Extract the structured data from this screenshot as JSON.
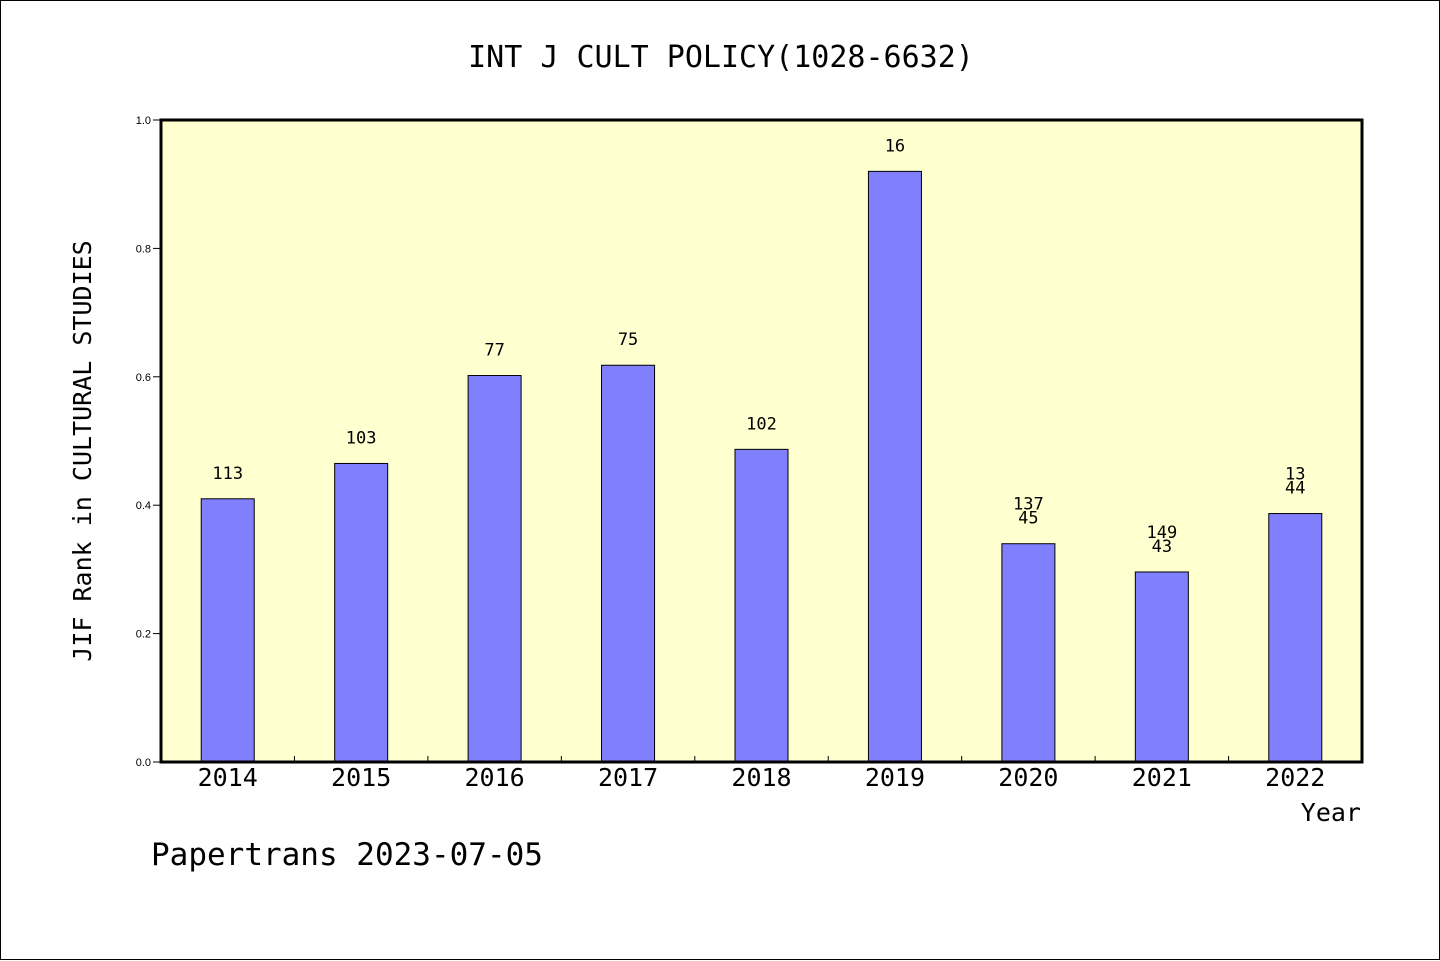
{
  "chart_data": {
    "type": "bar",
    "title": "INT J CULT POLICY(1028-6632)",
    "xlabel": "Year",
    "ylabel": "JIF Rank in CULTURAL STUDIES",
    "categories": [
      "2014",
      "2015",
      "2016",
      "2017",
      "2018",
      "2019",
      "2020",
      "2021",
      "2022"
    ],
    "values": [
      0.41,
      0.465,
      0.602,
      0.618,
      0.487,
      0.92,
      0.34,
      0.296,
      0.387
    ],
    "bar_labels": [
      [
        "113"
      ],
      [
        "103"
      ],
      [
        "77"
      ],
      [
        "75"
      ],
      [
        "102"
      ],
      [
        "16"
      ],
      [
        "137",
        "45"
      ],
      [
        "149",
        "43"
      ],
      [
        "13",
        "44"
      ]
    ],
    "ylim": [
      0,
      1.0
    ],
    "yticks": [
      "0.0",
      "0.2",
      "0.4",
      "0.6",
      "0.8",
      "1.0"
    ],
    "grid": false,
    "colors": {
      "plot_background": "#ffffd0",
      "bar_fill": "#8080ff",
      "bar_stroke": "#000000"
    }
  },
  "footer": {
    "watermark": "Papertrans 2023-07-05"
  }
}
